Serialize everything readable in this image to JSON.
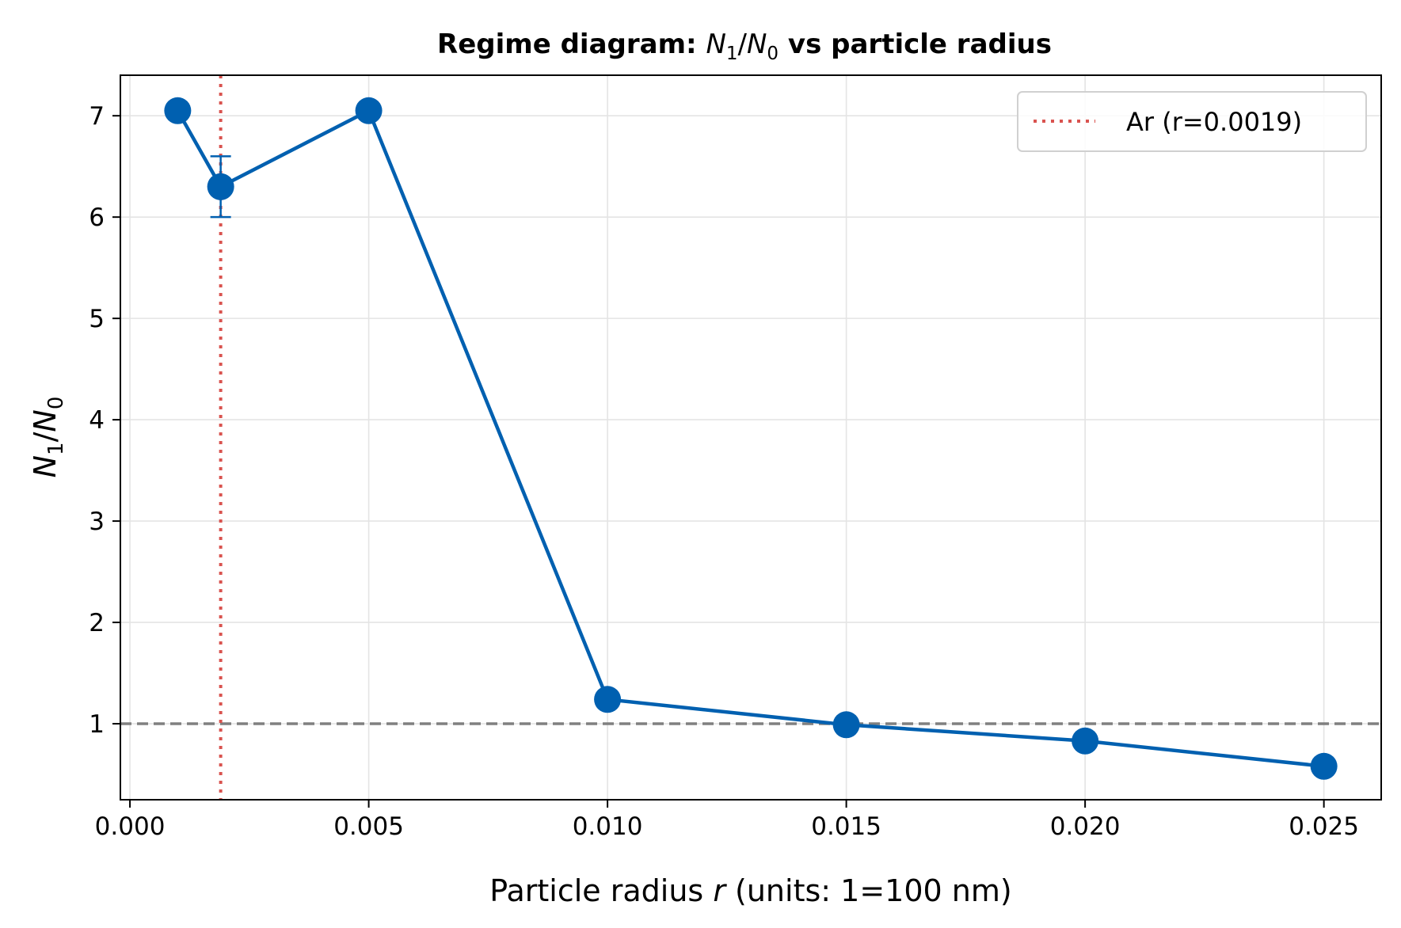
{
  "chart_data": {
    "type": "line",
    "title": {
      "prefix": "Regime diagram: ",
      "math_N": "N",
      "math_sub1": "1",
      "slash": "/",
      "math_sub0": "0",
      "suffix": " vs particle radius"
    },
    "xlabel": {
      "prefix": "Particle radius ",
      "var": "r",
      "suffix": " (units: 1=100 nm)"
    },
    "ylabel": {
      "N": "N",
      "sub1": "1",
      "slash": "/",
      "sub0": "0"
    },
    "xlim": [
      -0.0002,
      0.0262
    ],
    "ylim": [
      0.25,
      7.4
    ],
    "xticks": [
      0.0,
      0.005,
      0.01,
      0.015,
      0.02,
      0.025
    ],
    "xtick_labels": [
      "0.000",
      "0.005",
      "0.010",
      "0.015",
      "0.020",
      "0.025"
    ],
    "yticks": [
      1,
      2,
      3,
      4,
      5,
      6,
      7
    ],
    "ytick_labels": [
      "1",
      "2",
      "3",
      "4",
      "5",
      "6",
      "7"
    ],
    "grid": true,
    "series": [
      {
        "x": [
          0.001,
          0.0019,
          0.005,
          0.01,
          0.015,
          0.02,
          0.025
        ],
        "y": [
          7.05,
          6.3,
          7.05,
          1.24,
          0.99,
          0.83,
          0.58
        ],
        "yerr": [
          0.03,
          0.3,
          0.03,
          0.02,
          0.02,
          0.02,
          0.02
        ],
        "color": "#0060b0"
      }
    ],
    "hline": {
      "y": 1,
      "color": "#808080",
      "style": "dashed"
    },
    "vline": {
      "x": 0.0019,
      "color": "#d9534f",
      "style": "dotted",
      "label": "Ar (r=0.0019)"
    },
    "legend": {
      "position": "top-right",
      "entries": [
        "Ar (r=0.0019)"
      ]
    }
  }
}
